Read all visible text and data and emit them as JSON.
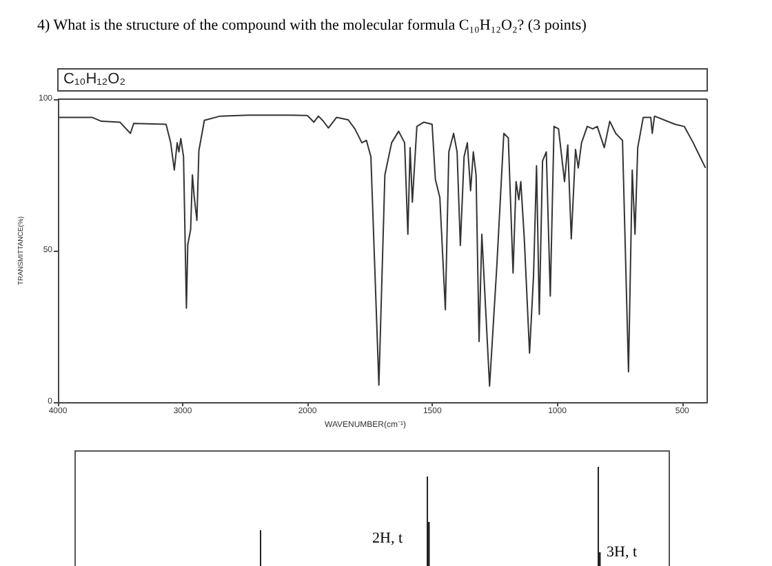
{
  "chart_data": [
    {
      "type": "line",
      "title": "4) What is the structure of the compound with the molecular formula C₁₀H₁₂O₂? (3 points)",
      "ylabel": "TRANSMITTANCE(%)",
      "annotations": [
        "C₁₀H₁₂O₂"
      ],
      "color": "#333333",
      "marker": "none",
      "x": [
        3990,
        3726,
        3652,
        3503,
        3419,
        3392,
        3133,
        3096,
        3067,
        3044,
        3030,
        3015,
        2993,
        2970,
        2959,
        2936,
        2922,
        2908,
        2886,
        2870,
        2826,
        2700,
        2478,
        2256,
        2133,
        2000
      ],
      "values": [
        94,
        94,
        92.7,
        92.4,
        88.7,
        92,
        91.7,
        85.6,
        76.6,
        85.6,
        82.6,
        87,
        81,
        31,
        52,
        57,
        75,
        68,
        60,
        83,
        93,
        94.4,
        94.7,
        94.7,
        94.7,
        94.6
      ],
      "xlim": [
        4000,
        2000
      ],
      "xticks": [
        4000,
        3000,
        2000
      ],
      "ylim": [
        0,
        100
      ],
      "yticks": [
        0,
        50,
        100
      ]
    },
    {
      "type": "line",
      "xlabel": "WAVENUMBER(cm⁻¹)",
      "color": "#333333",
      "marker": "none",
      "tick_labels": "x",
      "x": [
        2000,
        1974,
        1956,
        1938,
        1916,
        1883,
        1837,
        1810,
        1782,
        1764,
        1746,
        1714,
        1690,
        1663,
        1635,
        1611,
        1598,
        1589,
        1580,
        1562,
        1534,
        1501,
        1488,
        1470,
        1448,
        1434,
        1415,
        1401,
        1388,
        1373,
        1360,
        1347,
        1336,
        1325,
        1313,
        1302,
        1271,
        1242,
        1214,
        1196,
        1177,
        1165,
        1154,
        1146,
        1132,
        1111,
        1095,
        1083,
        1072,
        1059,
        1044,
        1028,
        1013,
        995,
        971,
        958,
        944,
        927,
        916,
        903,
        880,
        858,
        840,
        812,
        790,
        766,
        739,
        715,
        700,
        689,
        678,
        656,
        626,
        620,
        611,
        529,
        492,
        456,
        407
      ],
      "values": [
        94.6,
        92.4,
        94.4,
        92.9,
        90.5,
        94,
        93.2,
        90.2,
        85.6,
        86.4,
        81,
        5.6,
        75,
        85.6,
        89.4,
        85.6,
        55.4,
        84,
        66,
        91,
        92.4,
        91.7,
        73.6,
        67.5,
        30.5,
        82.6,
        88.7,
        82.6,
        51.7,
        81,
        85.6,
        69.8,
        82.6,
        75,
        20,
        55.4,
        5.3,
        44.9,
        88.7,
        87.2,
        42.6,
        72.8,
        66.8,
        72.8,
        53.9,
        16.2,
        41.8,
        78,
        29,
        79.6,
        82.6,
        35,
        91,
        90.2,
        72.8,
        84.9,
        53.9,
        83.4,
        77.3,
        85.6,
        91,
        90.2,
        91,
        84,
        92.7,
        88.7,
        86.4,
        10,
        76.6,
        55.4,
        84,
        94,
        94,
        88.7,
        94.4,
        91.7,
        91,
        85.6,
        77.3
      ],
      "xlim": [
        2000,
        400
      ],
      "xticks": [
        {
          "value": 2000,
          "label": null
        },
        1500,
        1000,
        500
      ],
      "ylim": [
        0,
        100
      ],
      "yticks": [
        0,
        50,
        100
      ]
    },
    {
      "type": "other",
      "annotations": [
        "2H, t",
        "3H, t"
      ]
    }
  ]
}
